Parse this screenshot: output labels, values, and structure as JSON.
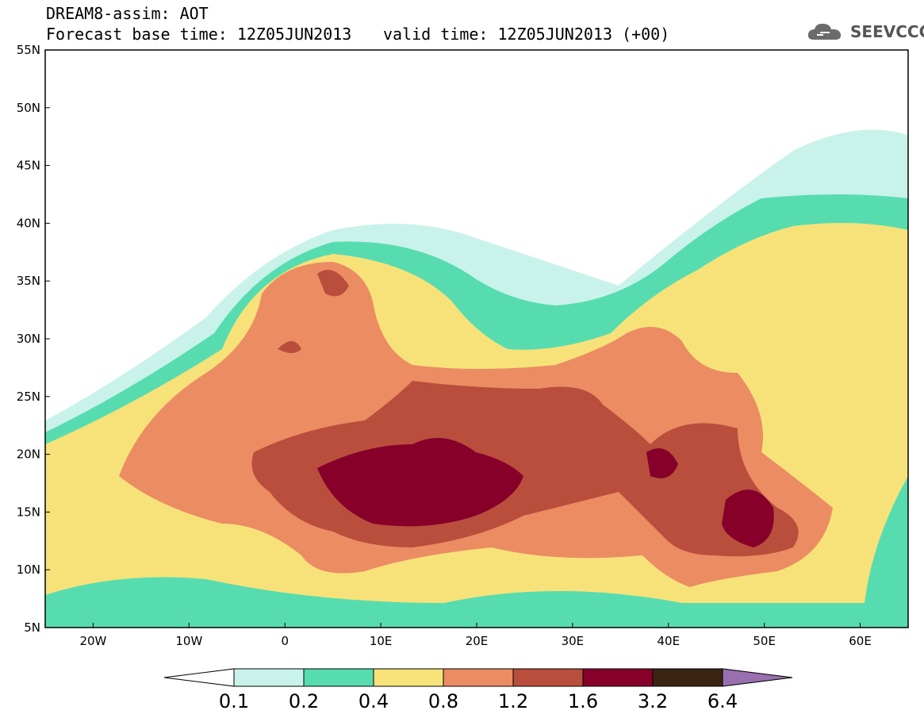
{
  "header": {
    "line1": "DREAM8-assim: AOT",
    "line2_left": "Forecast base time: 12Z05JUN2013",
    "line2_right": "valid time: 12Z05JUN2013 (+00)"
  },
  "logo": {
    "icon": "cloud-icon",
    "text": "SEEVCCC"
  },
  "map": {
    "lon_range": [
      -25,
      65
    ],
    "lat_range": [
      5,
      55
    ],
    "lat_ticks": [
      "5N",
      "10N",
      "15N",
      "20N",
      "25N",
      "30N",
      "35N",
      "40N",
      "45N",
      "50N",
      "55N"
    ],
    "lon_ticks": [
      "20W",
      "10W",
      "0",
      "10E",
      "20E",
      "30E",
      "40E",
      "50E",
      "60E"
    ]
  },
  "colorbar": {
    "labels": [
      "0.1",
      "0.2",
      "0.4",
      "0.8",
      "1.2",
      "1.6",
      "3.2",
      "6.4"
    ],
    "colors": [
      "#ffffff",
      "#c9f2ea",
      "#57dcb0",
      "#f7e27a",
      "#eb8c63",
      "#b94e3d",
      "#86002a",
      "#3b2412",
      "#9a6fb0"
    ]
  }
}
